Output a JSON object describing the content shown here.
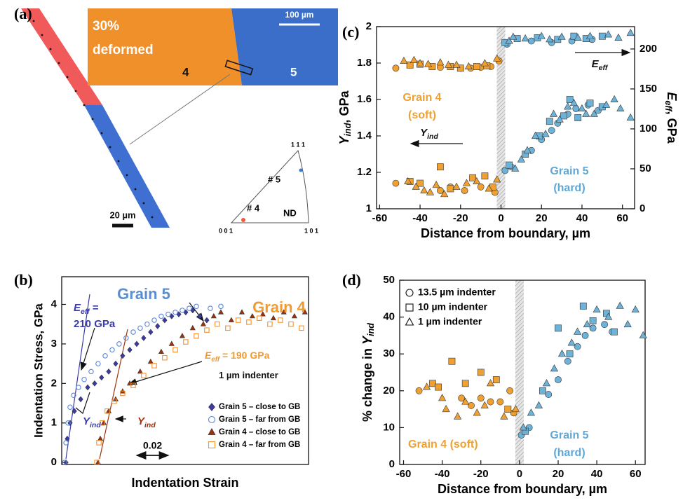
{
  "panel_a": {
    "label": "(a)",
    "deformation": "30%",
    "deformed_label": "deformed",
    "grain_left": "4",
    "grain_right": "5",
    "scale_top": "100 µm",
    "scale_bottom": "20 µm",
    "pole_top": "1 1 1",
    "pole_left": "0 0 1",
    "pole_right": "1 0 1",
    "pole_grain5": "# 5",
    "pole_grain4": "# 4",
    "pole_axis": "ND"
  },
  "chart_data": [
    {
      "type": "scatter",
      "panel": "(b)",
      "xlabel": "Indentation Strain",
      "ylabel": "Indentation Stress, GPa",
      "xlim": [
        0,
        0.156
      ],
      "ylim": [
        -0.05,
        4.7
      ],
      "yticks": [
        0,
        1,
        2,
        3,
        4
      ],
      "scale_bar": {
        "value": 0.02,
        "label": "0.02"
      },
      "legend": "lower right",
      "series": [
        {
          "name": "Grain 5 – close to GB",
          "color": "#3a3aa8",
          "marker": "diamond",
          "filled": true,
          "x": [
            0.0027,
            0.0035,
            0.0053,
            0.008,
            0.012,
            0.0164,
            0.0208,
            0.0252,
            0.0297,
            0.0341,
            0.0385,
            0.043,
            0.0474,
            0.0518,
            0.0562,
            0.0606,
            0.0651,
            0.0695,
            0.074,
            0.0784,
            0.0828,
            0.0873,
            0.0917
          ],
          "values": [
            0,
            0.6,
            1.0,
            1.3,
            1.6,
            1.9,
            2.0,
            2.15,
            2.3,
            2.5,
            2.7,
            2.85,
            3.0,
            3.15,
            3.3,
            3.45,
            3.6,
            3.7,
            3.75,
            3.8,
            3.85,
            3.7,
            3.6
          ]
        },
        {
          "name": "Grain 5 – far from GB",
          "color": "#5f86d6",
          "marker": "circle",
          "filled": false,
          "x": [
            0.0018,
            0.0027,
            0.004,
            0.0053,
            0.0075,
            0.0106,
            0.0142,
            0.0186,
            0.023,
            0.0275,
            0.0319,
            0.0363,
            0.0407,
            0.0452,
            0.0496,
            0.054,
            0.0585,
            0.0629,
            0.0673,
            0.0718,
            0.0762,
            0.0806,
            0.0851,
            0.0939,
            0.1006
          ],
          "values": [
            0,
            0.5,
            1.0,
            1.4,
            1.7,
            1.9,
            2.1,
            2.3,
            2.5,
            2.7,
            2.85,
            3.0,
            3.15,
            3.3,
            3.4,
            3.5,
            3.6,
            3.7,
            3.75,
            3.8,
            3.85,
            3.9,
            3.95,
            3.9,
            3.95
          ]
        },
        {
          "name": "Grain 4 – close to GB",
          "color": "#a0300a",
          "marker": "triangle",
          "filled": true,
          "x": [
            0.023,
            0.0244,
            0.0266,
            0.0297,
            0.0341,
            0.0385,
            0.043,
            0.0496,
            0.0562,
            0.0629,
            0.0695,
            0.0762,
            0.0828,
            0.0895,
            0.0961,
            0.1006,
            0.1072,
            0.1139,
            0.1205,
            0.1271,
            0.1338,
            0.1404,
            0.1471,
            0.1537
          ],
          "values": [
            0,
            0.6,
            1.0,
            1.3,
            1.6,
            1.8,
            2.0,
            2.3,
            2.55,
            2.8,
            3.0,
            3.2,
            3.4,
            3.5,
            3.7,
            3.8,
            3.6,
            3.8,
            3.7,
            3.75,
            3.65,
            3.8,
            3.7,
            3.8
          ]
        },
        {
          "name": "Grain 4 – far from GB",
          "color": "#f5922a",
          "marker": "square",
          "filled": false,
          "x": [
            0.0222,
            0.0235,
            0.0257,
            0.0288,
            0.0332,
            0.0385,
            0.0452,
            0.0518,
            0.0585,
            0.0651,
            0.0718,
            0.0784,
            0.0851,
            0.0917,
            0.0983,
            0.105,
            0.1116,
            0.1183,
            0.1249,
            0.1316,
            0.1382,
            0.1449,
            0.1515
          ],
          "values": [
            0,
            0.5,
            1.0,
            1.3,
            1.55,
            1.75,
            1.95,
            2.2,
            2.45,
            2.65,
            2.85,
            3.05,
            3.2,
            3.35,
            3.5,
            3.4,
            3.6,
            3.55,
            3.65,
            3.5,
            3.6,
            3.5,
            3.4
          ]
        }
      ],
      "annotations": [
        {
          "parts": [
            {
              "text": "Grain 5"
            }
          ],
          "color": "#5b8fcf"
        },
        {
          "parts": [
            {
              "text": "Grain 4"
            }
          ],
          "color": "#f39a2e"
        },
        {
          "parts": [
            {
              "text": "E",
              "style": "italic"
            },
            {
              "text": "eff",
              "style": "sub"
            },
            {
              "text": " ="
            }
          ],
          "color": "#3a3aa8"
        },
        {
          "parts": [
            {
              "text": "210 GPa"
            }
          ],
          "color": "#3a3aa8"
        },
        {
          "parts": [
            {
              "text": "E",
              "style": "italic"
            },
            {
              "text": "eff",
              "style": "sub"
            },
            {
              "text": " = 190 GPa"
            }
          ],
          "color": "#f39a2e"
        },
        {
          "parts": [
            {
              "text": "1 µm indenter"
            }
          ],
          "color": "#111111"
        },
        {
          "parts": [
            {
              "text": "Y",
              "style": "italic"
            },
            {
              "text": "ind",
              "style": "sub"
            }
          ],
          "color": "#3a3aa8"
        },
        {
          "parts": [
            {
              "text": "Y",
              "style": "italic"
            },
            {
              "text": "ind",
              "style": "sub"
            }
          ],
          "color": "#a0300a"
        }
      ]
    },
    {
      "type": "scatter",
      "panel": "(c)",
      "xlabel": "Distance from boundary, µm",
      "ylabel_parts": [
        {
          "text": "Y",
          "style": "italic"
        },
        {
          "text": "ind",
          "style": "sub"
        },
        {
          "text": ", GPa"
        }
      ],
      "y2label_parts": [
        {
          "text": "E",
          "style": "italic"
        },
        {
          "text": "eff",
          "style": "sub"
        },
        {
          "text": ", GPa"
        }
      ],
      "xlim": [
        -61.5,
        66
      ],
      "xticks": [
        -60,
        -40,
        -20,
        0,
        20,
        40,
        60
      ],
      "ylim": [
        1,
        2
      ],
      "yticks": [
        1,
        1.2,
        1.4,
        1.6,
        1.8,
        2
      ],
      "y2lim": [
        0,
        228
      ],
      "y2ticks": [
        0,
        50,
        100,
        150,
        200
      ],
      "series": [
        {
          "color": "#f0a030",
          "marker": "circle",
          "x": [
            -52,
            -30,
            -25,
            -18,
            -10,
            -3
          ],
          "values": [
            1.14,
            1.1,
            1.12,
            1.1,
            1.12,
            1.09
          ]
        },
        {
          "color": "#f0a030",
          "marker": "square",
          "x": [
            -45,
            -40,
            -30,
            -25,
            -14,
            -8,
            -4
          ],
          "values": [
            1.15,
            1.14,
            1.23,
            1.11,
            1.17,
            1.18,
            1.12
          ]
        },
        {
          "color": "#f0a030",
          "marker": "triangle",
          "x": [
            -46,
            -42,
            -38,
            -35,
            -32,
            -28,
            -22,
            -17,
            -12,
            -6,
            -2
          ],
          "values": [
            1.15,
            1.12,
            1.1,
            1.09,
            1.13,
            1.08,
            1.12,
            1.14,
            1.15,
            1.11,
            1.16
          ]
        },
        {
          "color": "#6db3d9",
          "marker": "circle",
          "x": [
            2,
            5,
            15,
            20,
            25,
            28,
            33,
            37,
            43,
            48
          ],
          "values": [
            1.21,
            1.23,
            1.32,
            1.38,
            1.43,
            1.47,
            1.52,
            1.55,
            1.57,
            1.54
          ]
        },
        {
          "color": "#6db3d9",
          "marker": "square",
          "x": [
            4,
            12,
            19,
            24,
            31,
            34,
            38,
            44,
            50
          ],
          "values": [
            1.24,
            1.3,
            1.4,
            1.48,
            1.51,
            1.6,
            1.5,
            1.58,
            1.56
          ]
        },
        {
          "color": "#6db3d9",
          "marker": "triangle",
          "x": [
            7,
            10,
            13,
            17,
            22,
            26,
            29,
            33,
            36,
            40,
            42,
            46,
            52,
            56,
            59,
            64
          ],
          "values": [
            1.22,
            1.27,
            1.32,
            1.4,
            1.41,
            1.52,
            1.49,
            1.56,
            1.58,
            1.55,
            1.52,
            1.52,
            1.57,
            1.6,
            1.55,
            1.5
          ]
        },
        {
          "color": "#f0a030",
          "marker": "circle",
          "axis": "y2",
          "x": [
            -52,
            -30,
            -20,
            -15,
            -10,
            -5,
            -1
          ],
          "values": [
            176,
            177,
            176,
            176,
            177,
            178,
            185
          ]
        },
        {
          "color": "#f0a030",
          "marker": "square",
          "axis": "y2",
          "x": [
            -45,
            -40,
            -34,
            -25,
            -20,
            -12,
            -7
          ],
          "values": [
            180,
            181,
            178,
            178,
            176,
            178,
            179
          ]
        },
        {
          "color": "#f0a030",
          "marker": "triangle",
          "axis": "y2",
          "x": [
            -48,
            -43,
            -40,
            -36,
            -30,
            -26,
            -22,
            -16,
            -8,
            -2
          ],
          "values": [
            185,
            186,
            182,
            181,
            183,
            180,
            180,
            178,
            182,
            188
          ]
        },
        {
          "color": "#6db3d9",
          "marker": "circle",
          "axis": "y2",
          "x": [
            3,
            15,
            25,
            35,
            45
          ],
          "values": [
            206,
            210,
            208,
            210,
            212
          ]
        },
        {
          "color": "#6db3d9",
          "marker": "square",
          "axis": "y2",
          "x": [
            2,
            8,
            18,
            28,
            36,
            42,
            50
          ],
          "values": [
            208,
            213,
            214,
            212,
            216,
            213,
            216
          ]
        },
        {
          "color": "#6db3d9",
          "marker": "triangle",
          "axis": "y2",
          "x": [
            4,
            6,
            12,
            20,
            24,
            30,
            38,
            44,
            53,
            58,
            64
          ],
          "values": [
            210,
            215,
            213,
            216,
            212,
            215,
            214,
            216,
            218,
            214,
            220
          ]
        }
      ],
      "annotations": [
        {
          "parts": [
            {
              "text": "Grain 4"
            }
          ],
          "color": "#f0a030"
        },
        {
          "parts": [
            {
              "text": "(soft)"
            }
          ],
          "color": "#f0a030"
        },
        {
          "parts": [
            {
              "text": "Grain 5"
            }
          ],
          "color": "#5fa8d6"
        },
        {
          "parts": [
            {
              "text": "(hard)"
            }
          ],
          "color": "#5fa8d6"
        },
        {
          "parts": [
            {
              "text": "Y",
              "style": "italic"
            },
            {
              "text": "ind",
              "style": "sub"
            }
          ],
          "color": "#111111"
        },
        {
          "parts": [
            {
              "text": "E",
              "style": "italic"
            },
            {
              "text": "eff",
              "style": "sub"
            }
          ],
          "color": "#111111"
        }
      ]
    },
    {
      "type": "scatter",
      "panel": "(d)",
      "xlabel": "Distance from boundary, µm",
      "ylabel_parts": [
        {
          "text": "% change in "
        },
        {
          "text": "Y",
          "style": "italic"
        },
        {
          "text": "ind",
          "style": "sub"
        }
      ],
      "xlim": [
        -62,
        65
      ],
      "xticks": [
        -60,
        -40,
        -20,
        0,
        20,
        40,
        60
      ],
      "ylim": [
        0,
        50
      ],
      "yticks": [
        0,
        10,
        20,
        30,
        40,
        50
      ],
      "legend": [
        {
          "marker": "circle",
          "label": "13.5 µm indenter"
        },
        {
          "marker": "square",
          "label": "10 µm indenter"
        },
        {
          "marker": "triangle",
          "label": "1 µm indenter"
        }
      ],
      "series": [
        {
          "color": "#f0a030",
          "marker": "circle",
          "x": [
            -52,
            -30,
            -25,
            -20,
            -15,
            -10,
            -5,
            -3
          ],
          "values": [
            20,
            18,
            16,
            18,
            17,
            17,
            20,
            14
          ]
        },
        {
          "color": "#f0a030",
          "marker": "square",
          "x": [
            -45,
            -42,
            -35,
            -28,
            -20,
            -12,
            -6
          ],
          "values": [
            22,
            21,
            28,
            22,
            25,
            23,
            15
          ]
        },
        {
          "color": "#f0a030",
          "marker": "triangle",
          "x": [
            -48,
            -40,
            -38,
            -32,
            -28,
            -22,
            -18,
            -15,
            -8,
            -2
          ],
          "values": [
            21,
            18,
            15,
            13,
            17,
            14,
            16,
            22,
            13,
            15
          ]
        },
        {
          "color": "#6db3d9",
          "marker": "circle",
          "x": [
            1,
            5,
            15,
            20,
            25,
            30,
            34,
            38,
            44,
            48
          ],
          "values": [
            8,
            10,
            19,
            23,
            28,
            32,
            35,
            37,
            38,
            36
          ]
        },
        {
          "color": "#6db3d9",
          "marker": "square",
          "x": [
            3,
            12,
            20,
            26,
            33,
            38,
            45,
            49
          ],
          "values": [
            9,
            20,
            37,
            30,
            43,
            39,
            41,
            36
          ]
        },
        {
          "color": "#6db3d9",
          "marker": "triangle",
          "x": [
            2,
            6,
            10,
            14,
            18,
            22,
            27,
            30,
            35,
            40,
            46,
            52,
            56,
            60,
            64
          ],
          "values": [
            10,
            14,
            16,
            22,
            26,
            30,
            33,
            36,
            38,
            42,
            40,
            43,
            38,
            42,
            35
          ]
        }
      ],
      "annotations": [
        {
          "parts": [
            {
              "text": "Grain 4 (soft)"
            }
          ],
          "color": "#f0a030"
        },
        {
          "parts": [
            {
              "text": "Grain 5"
            }
          ],
          "color": "#5fa8d6"
        },
        {
          "parts": [
            {
              "text": "(hard)"
            }
          ],
          "color": "#5fa8d6"
        }
      ]
    }
  ]
}
